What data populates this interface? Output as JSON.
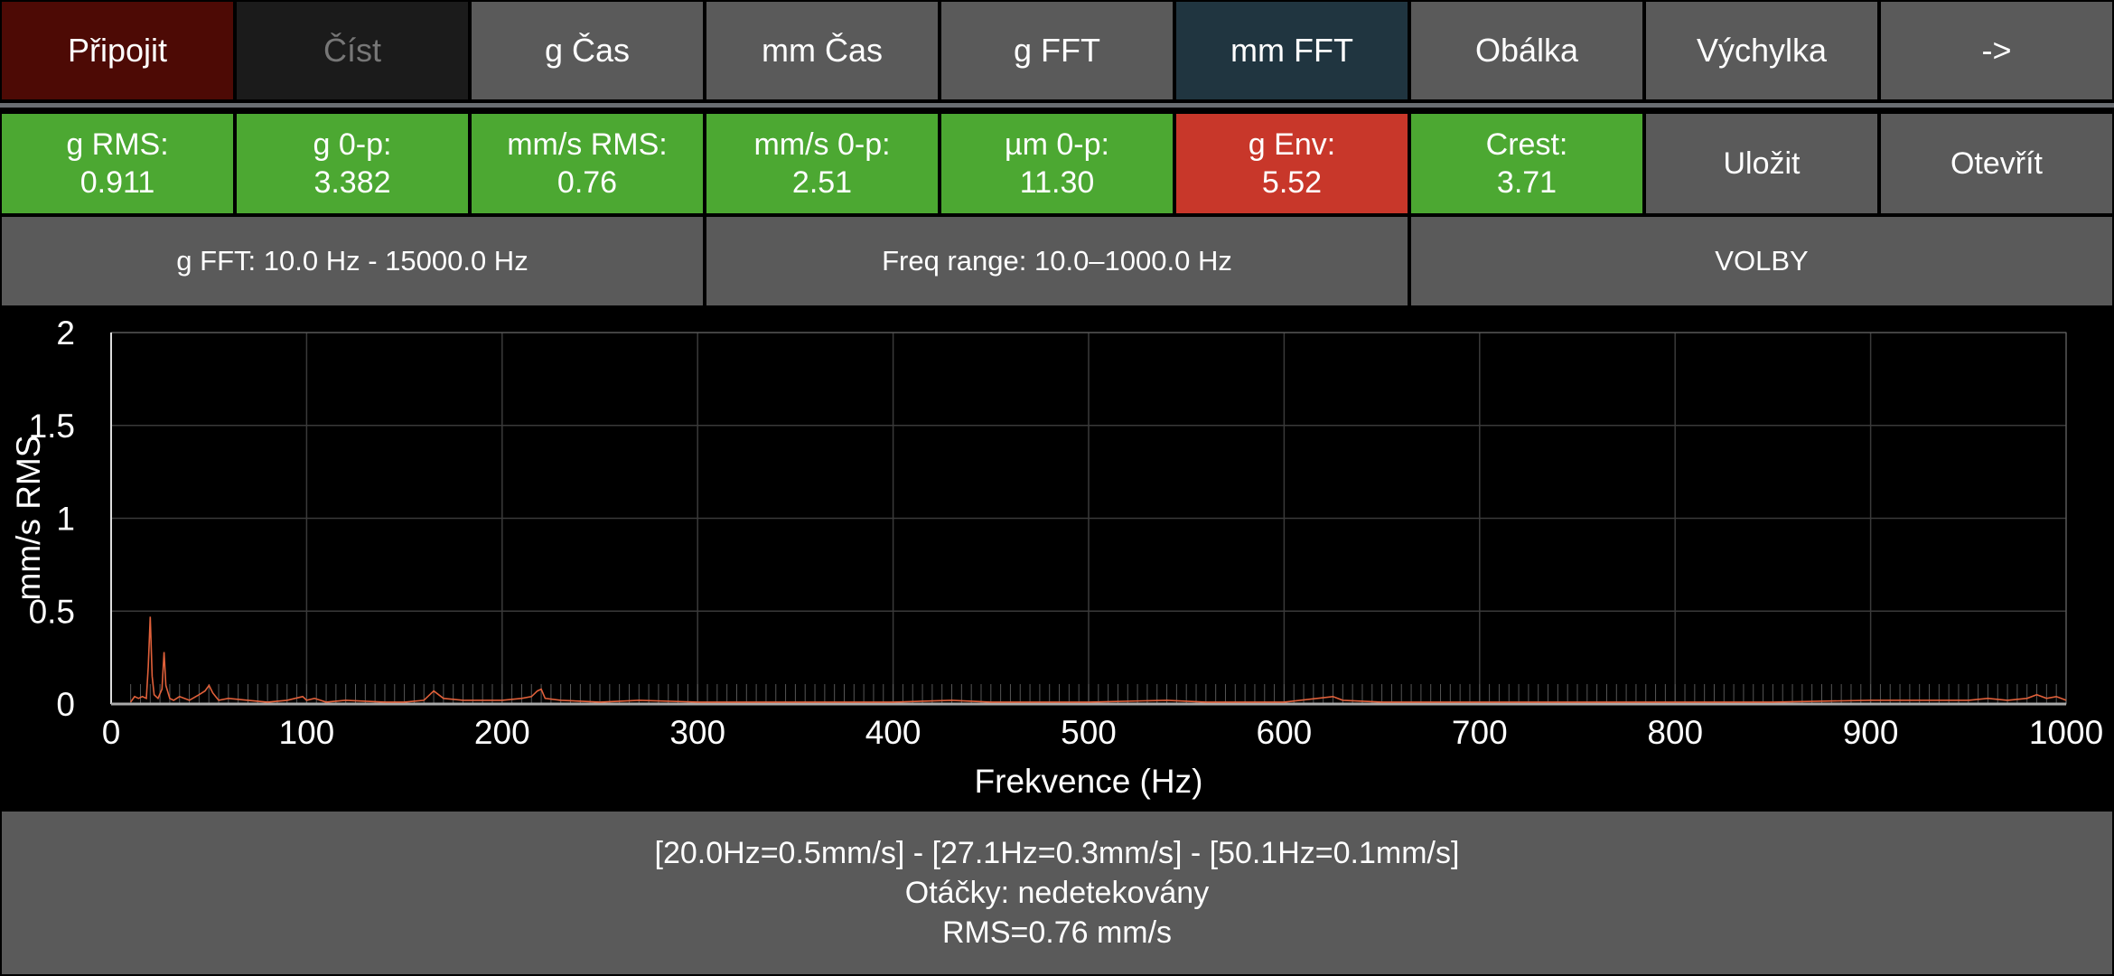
{
  "top_nav": [
    {
      "label": "Připojit",
      "color": "#4d0a05",
      "text_color": "#ffffff"
    },
    {
      "label": "Číst",
      "color": "#1b1b1b",
      "text_color": "#777777"
    },
    {
      "label": "g Čas",
      "color": "#5a5a5a",
      "text_color": "#ffffff"
    },
    {
      "label": "mm Čas",
      "color": "#5a5a5a",
      "text_color": "#ffffff"
    },
    {
      "label": "g FFT",
      "color": "#5a5a5a",
      "text_color": "#ffffff"
    },
    {
      "label": "mm FFT",
      "color": "#203540",
      "text_color": "#ffffff"
    },
    {
      "label": "Obálka",
      "color": "#5a5a5a",
      "text_color": "#ffffff"
    },
    {
      "label": "Výchylka",
      "color": "#5a5a5a",
      "text_color": "#ffffff"
    },
    {
      "label": "->",
      "color": "#5a5a5a",
      "text_color": "#ffffff"
    }
  ],
  "metrics": [
    {
      "label": "g RMS:",
      "value": "0.911",
      "status": "green"
    },
    {
      "label": "g 0-p:",
      "value": "3.382",
      "status": "green"
    },
    {
      "label": "mm/s RMS:",
      "value": "0.76",
      "status": "green"
    },
    {
      "label": "mm/s 0-p:",
      "value": "2.51",
      "status": "green"
    },
    {
      "label": "µm 0-p:",
      "value": "11.30",
      "status": "green"
    },
    {
      "label": "g Env:",
      "value": "5.52",
      "status": "red"
    },
    {
      "label": "Crest:",
      "value": "3.71",
      "status": "green"
    }
  ],
  "actions": {
    "save": "Uložit",
    "open": "Otevřít"
  },
  "info_row": {
    "g_fft": "g FFT: 10.0 Hz - 15000.0 Hz",
    "freq_range": "Freq range: 10.0–1000.0 Hz",
    "options": "VOLBY"
  },
  "colors": {
    "green": "#4ca832",
    "red": "#c8372a",
    "line": "#e0603a",
    "grid": "#3a3a3a"
  },
  "chart_data": {
    "type": "line",
    "xlabel": "Frekvence (Hz)",
    "ylabel": "mm/s RMS",
    "xlim": [
      0,
      1000
    ],
    "ylim": [
      0,
      2
    ],
    "xticks": [
      "0",
      "100",
      "200",
      "300",
      "400",
      "500",
      "600",
      "700",
      "800",
      "900",
      "1000"
    ],
    "yticks": [
      "0",
      "0.5",
      "1",
      "1.5",
      "2"
    ],
    "grid": true,
    "series": [
      {
        "x": [
          10,
          12,
          14,
          16,
          18,
          19,
          20,
          21,
          22,
          24,
          26,
          27.1,
          28,
          30,
          32,
          35,
          40,
          45,
          48,
          50.1,
          52,
          55,
          60,
          70,
          80,
          90,
          98,
          100,
          104,
          110,
          120,
          140,
          150,
          160,
          165,
          170,
          180,
          200,
          210,
          215,
          218,
          220,
          222,
          230,
          250,
          270,
          300,
          350,
          400,
          430,
          450,
          500,
          540,
          560,
          600,
          625,
          630,
          650,
          700,
          750,
          800,
          830,
          850,
          900,
          950,
          960,
          970,
          980,
          985,
          990,
          995,
          1000
        ],
        "y": [
          0.01,
          0.04,
          0.03,
          0.04,
          0.03,
          0.2,
          0.47,
          0.15,
          0.05,
          0.03,
          0.08,
          0.28,
          0.1,
          0.03,
          0.02,
          0.04,
          0.02,
          0.05,
          0.07,
          0.1,
          0.06,
          0.02,
          0.03,
          0.02,
          0.01,
          0.02,
          0.04,
          0.02,
          0.03,
          0.01,
          0.02,
          0.01,
          0.01,
          0.02,
          0.07,
          0.03,
          0.02,
          0.02,
          0.03,
          0.04,
          0.07,
          0.08,
          0.03,
          0.02,
          0.01,
          0.02,
          0.01,
          0.01,
          0.01,
          0.02,
          0.01,
          0.01,
          0.02,
          0.01,
          0.01,
          0.04,
          0.02,
          0.01,
          0.01,
          0.01,
          0.01,
          0.01,
          0.01,
          0.02,
          0.02,
          0.03,
          0.02,
          0.03,
          0.05,
          0.03,
          0.04,
          0.02
        ]
      }
    ]
  },
  "summary": {
    "peaks": "[20.0Hz=0.5mm/s] - [27.1Hz=0.3mm/s] - [50.1Hz=0.1mm/s]",
    "rpm": "Otáčky: nedetekovány",
    "rms": "RMS=0.76 mm/s"
  }
}
